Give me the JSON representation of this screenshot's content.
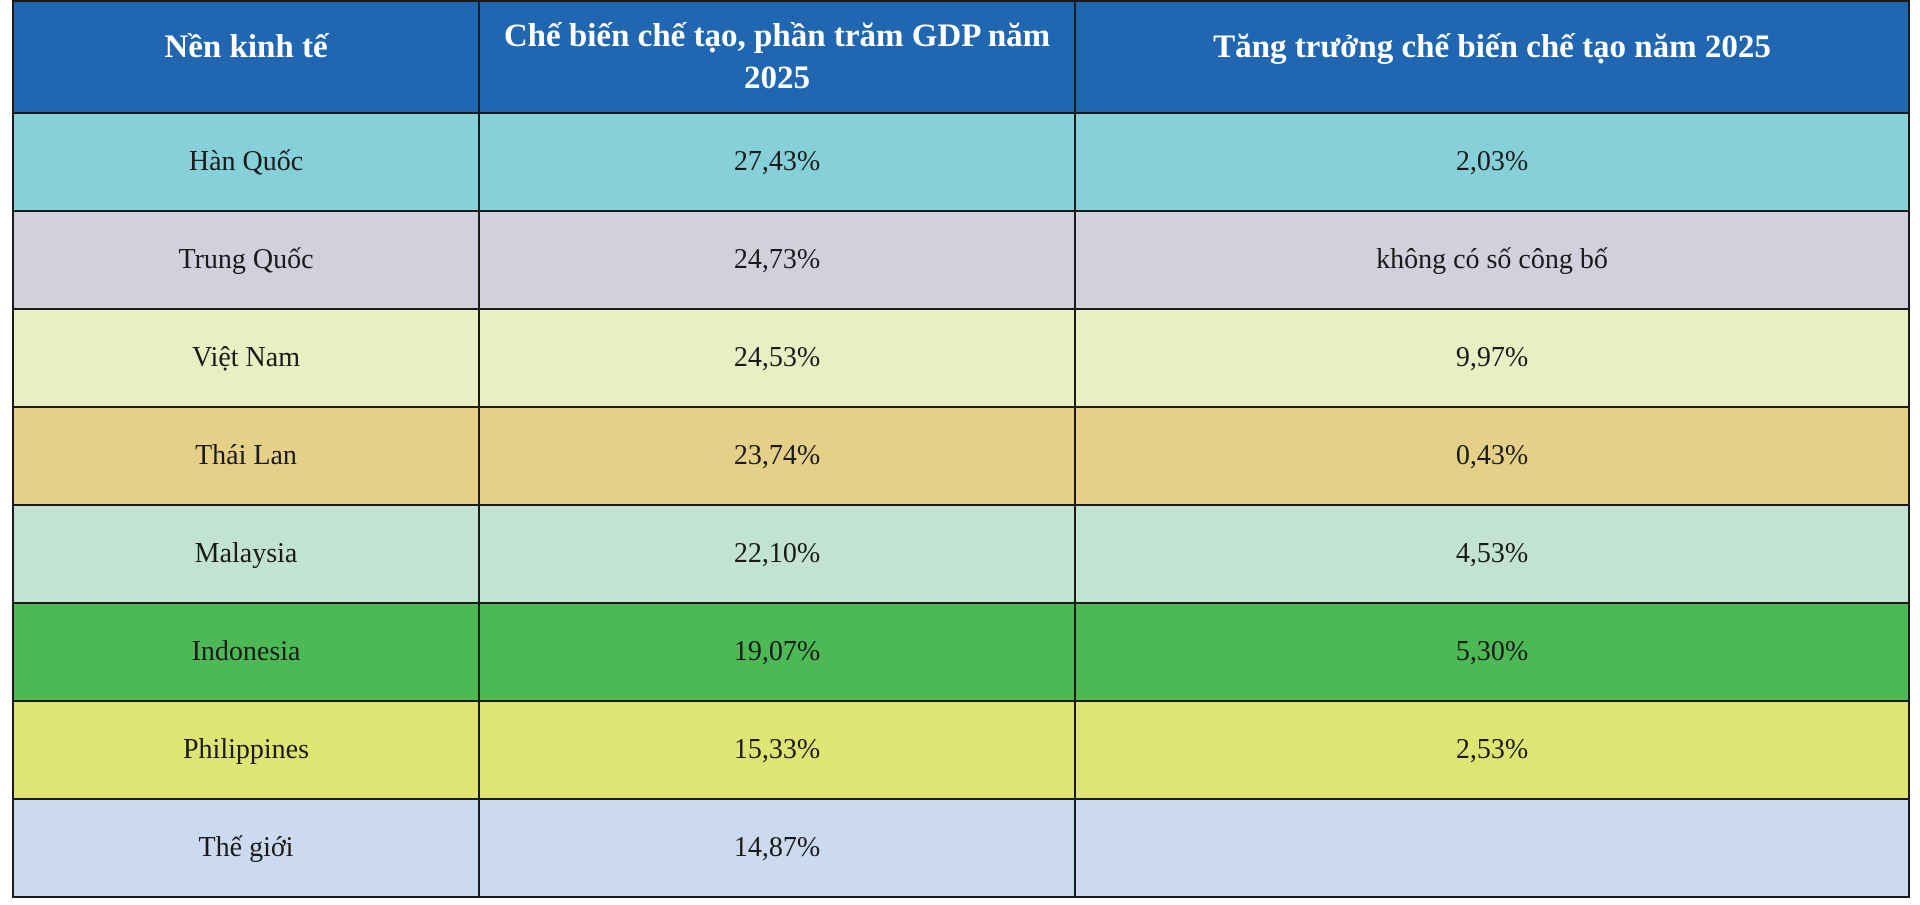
{
  "table": {
    "header_color": "#2066B1",
    "headers": [
      "Nền kinh tế",
      "Chế biến chế tạo, phần trăm GDP năm 2025",
      "Tăng trưởng chế biến chế tạo năm 2025"
    ],
    "rows": [
      {
        "economy": "Hàn Quốc",
        "share_gdp": "27,43%",
        "growth": "2,03%",
        "color": "#86D1D9"
      },
      {
        "economy": "Trung Quốc",
        "share_gdp": "24,73%",
        "growth": "không có số công bố",
        "color": "#D0D1DC"
      },
      {
        "economy": "Việt Nam",
        "share_gdp": "24,53%",
        "growth": "9,97%",
        "color": "#E6F0C3"
      },
      {
        "economy": "Thái Lan",
        "share_gdp": "23,74%",
        "growth": "0,43%",
        "color": "#E5D088"
      },
      {
        "economy": "Malaysia",
        "share_gdp": "22,10%",
        "growth": "4,53%",
        "color": "#C2E3D2"
      },
      {
        "economy": "Indonesia",
        "share_gdp": "19,07%",
        "growth": "5,30%",
        "color": "#4CB955"
      },
      {
        "economy": "Philippines",
        "share_gdp": "15,33%",
        "growth": "2,53%",
        "color": "#DFE572"
      },
      {
        "economy": "Thế giới",
        "share_gdp": "14,87%",
        "growth": "",
        "color": "#CCDAF0"
      }
    ]
  }
}
